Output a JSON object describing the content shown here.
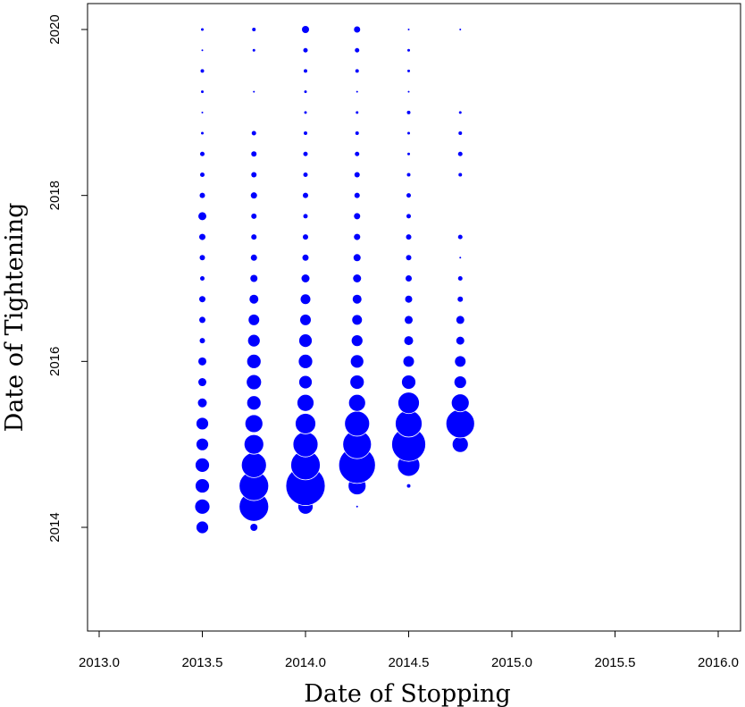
{
  "chart_data": {
    "type": "scatter",
    "title": "",
    "xlabel": "Date of Stopping",
    "ylabel": "Date of Tightening",
    "xlim": [
      2012.95,
      2016.05
    ],
    "ylim": [
      2012.75,
      2020.25
    ],
    "x_ticks": [
      "2013.0",
      "2013.5",
      "2014.0",
      "2014.5",
      "2015.0",
      "2015.5",
      "2016.0"
    ],
    "y_ticks": [
      "2014",
      "2016",
      "2018",
      "2020"
    ],
    "grid": false,
    "marker_color": "#0000ff",
    "marker_shape": "circle",
    "size_encoding": "relative frequency (bubble radius)",
    "columns": [
      {
        "x": 2013.5,
        "points": [
          [
            2014.0,
            7
          ],
          [
            2014.25,
            8.5
          ],
          [
            2014.5,
            8
          ],
          [
            2014.75,
            8
          ],
          [
            2015.0,
            7
          ],
          [
            2015.25,
            7
          ],
          [
            2015.5,
            5
          ],
          [
            2015.75,
            4.5
          ],
          [
            2016.0,
            4.5
          ],
          [
            2016.25,
            3
          ],
          [
            2016.5,
            3.5
          ],
          [
            2016.75,
            3.5
          ],
          [
            2017.0,
            2.5
          ],
          [
            2017.25,
            3
          ],
          [
            2017.5,
            3.5
          ],
          [
            2017.75,
            4.5
          ],
          [
            2018.0,
            3
          ],
          [
            2018.25,
            2.5
          ],
          [
            2018.5,
            2.5
          ],
          [
            2018.75,
            1.5
          ],
          [
            2019.0,
            1
          ],
          [
            2019.25,
            1.5
          ],
          [
            2019.5,
            2
          ],
          [
            2019.75,
            1
          ],
          [
            2020.0,
            1.5
          ]
        ]
      },
      {
        "x": 2013.75,
        "points": [
          [
            2014.0,
            4
          ],
          [
            2014.25,
            16.5
          ],
          [
            2014.5,
            16.5
          ],
          [
            2014.75,
            14
          ],
          [
            2015.0,
            11
          ],
          [
            2015.25,
            10
          ],
          [
            2015.5,
            8
          ],
          [
            2015.75,
            8.5
          ],
          [
            2016.0,
            8
          ],
          [
            2016.25,
            7
          ],
          [
            2016.5,
            6
          ],
          [
            2016.75,
            5
          ],
          [
            2017.0,
            4
          ],
          [
            2017.25,
            3.5
          ],
          [
            2017.5,
            3
          ],
          [
            2017.75,
            3
          ],
          [
            2018.0,
            3.5
          ],
          [
            2018.25,
            3
          ],
          [
            2018.5,
            3
          ],
          [
            2018.75,
            2.5
          ],
          [
            2019.25,
            1
          ],
          [
            2019.75,
            1.5
          ],
          [
            2020.0,
            2
          ]
        ]
      },
      {
        "x": 2014.0,
        "points": [
          [
            2014.25,
            8.5
          ],
          [
            2014.5,
            22
          ],
          [
            2014.75,
            16.5
          ],
          [
            2015.0,
            14
          ],
          [
            2015.25,
            11.5
          ],
          [
            2015.5,
            9.5
          ],
          [
            2015.75,
            7.5
          ],
          [
            2016.0,
            8
          ],
          [
            2016.25,
            7.5
          ],
          [
            2016.5,
            6
          ],
          [
            2016.75,
            5.5
          ],
          [
            2017.0,
            4.5
          ],
          [
            2017.25,
            3.5
          ],
          [
            2017.5,
            3
          ],
          [
            2017.75,
            2.5
          ],
          [
            2018.0,
            3
          ],
          [
            2018.25,
            2.5
          ],
          [
            2018.5,
            2.5
          ],
          [
            2018.75,
            2
          ],
          [
            2019.0,
            1.5
          ],
          [
            2019.25,
            1.5
          ],
          [
            2019.5,
            2
          ],
          [
            2019.75,
            2.5
          ],
          [
            2020.0,
            4
          ]
        ]
      },
      {
        "x": 2014.25,
        "points": [
          [
            2014.25,
            1
          ],
          [
            2014.5,
            10
          ],
          [
            2014.75,
            20.5
          ],
          [
            2015.0,
            16
          ],
          [
            2015.25,
            14
          ],
          [
            2015.5,
            9.5
          ],
          [
            2015.75,
            8
          ],
          [
            2016.0,
            7.5
          ],
          [
            2016.25,
            6.5
          ],
          [
            2016.5,
            5.5
          ],
          [
            2016.75,
            5
          ],
          [
            2017.0,
            4.5
          ],
          [
            2017.25,
            4
          ],
          [
            2017.5,
            3.5
          ],
          [
            2017.75,
            3.5
          ],
          [
            2018.0,
            3
          ],
          [
            2018.25,
            3
          ],
          [
            2018.5,
            2.5
          ],
          [
            2018.75,
            2
          ],
          [
            2019.0,
            1.5
          ],
          [
            2019.25,
            1
          ],
          [
            2019.5,
            2
          ],
          [
            2019.75,
            2.5
          ],
          [
            2020.0,
            3.5
          ]
        ]
      },
      {
        "x": 2014.5,
        "points": [
          [
            2014.5,
            2
          ],
          [
            2014.75,
            12.5
          ],
          [
            2015.0,
            19
          ],
          [
            2015.25,
            15
          ],
          [
            2015.5,
            12
          ],
          [
            2015.75,
            8
          ],
          [
            2016.0,
            6
          ],
          [
            2016.25,
            5
          ],
          [
            2016.5,
            4.5
          ],
          [
            2016.75,
            4
          ],
          [
            2017.0,
            3.5
          ],
          [
            2017.25,
            3
          ],
          [
            2017.5,
            3
          ],
          [
            2017.75,
            2.5
          ],
          [
            2018.0,
            2.5
          ],
          [
            2018.25,
            2
          ],
          [
            2018.5,
            1.5
          ],
          [
            2018.75,
            1.5
          ],
          [
            2019.0,
            2
          ],
          [
            2019.25,
            1
          ],
          [
            2019.5,
            1.5
          ],
          [
            2019.75,
            1.5
          ],
          [
            2020.0,
            1
          ]
        ]
      },
      {
        "x": 2014.75,
        "points": [
          [
            2015.0,
            9
          ],
          [
            2015.25,
            16
          ],
          [
            2015.5,
            10
          ],
          [
            2015.75,
            7
          ],
          [
            2016.0,
            6
          ],
          [
            2016.25,
            4.5
          ],
          [
            2016.5,
            4.5
          ],
          [
            2016.75,
            3
          ],
          [
            2017.0,
            2.5
          ],
          [
            2017.25,
            1
          ],
          [
            2017.5,
            2.5
          ],
          [
            2018.25,
            2
          ],
          [
            2018.5,
            2.5
          ],
          [
            2018.75,
            2
          ],
          [
            2019.0,
            1.5
          ],
          [
            2020.0,
            1
          ]
        ]
      }
    ]
  }
}
